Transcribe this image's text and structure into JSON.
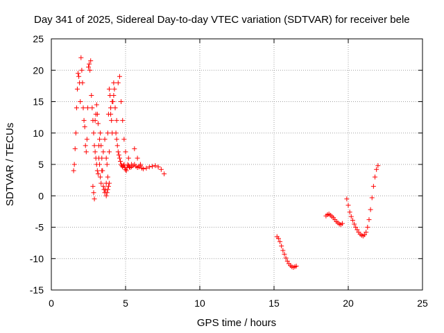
{
  "chart_data": {
    "type": "scatter",
    "title": "Day 341 of 2025, Sidereal Day-to-day VTEC variation (SDTVAR) for receiver bele",
    "xlabel": "GPS time / hours",
    "ylabel": "SDTVAR / TECUs",
    "xlim": [
      0,
      25
    ],
    "ylim": [
      -15,
      25
    ],
    "xticks": [
      0,
      5,
      10,
      15,
      20,
      25
    ],
    "yticks": [
      -15,
      -10,
      -5,
      0,
      5,
      10,
      15,
      20,
      25
    ],
    "xtick_labels": [
      "0",
      "5",
      "10",
      "15",
      "20",
      "25"
    ],
    "ytick_labels": [
      "-15",
      "-10",
      "-5",
      "0",
      "5",
      "10",
      "15",
      "20",
      "25"
    ],
    "grid": true,
    "marker": "plus",
    "color": "#ff0000",
    "series": [
      {
        "name": "SDTVAR",
        "x": [
          1.5,
          1.55,
          1.6,
          1.65,
          1.7,
          1.75,
          1.8,
          1.85,
          1.9,
          1.95,
          2.0,
          2.05,
          2.1,
          2.15,
          2.2,
          2.25,
          2.3,
          2.35,
          2.4,
          2.45,
          2.5,
          2.55,
          2.6,
          2.65,
          2.7,
          2.75,
          2.8,
          2.85,
          2.9,
          2.95,
          3.0,
          3.05,
          3.1,
          3.15,
          3.2,
          3.25,
          3.3,
          3.35,
          3.4,
          3.45,
          3.5,
          3.55,
          3.6,
          3.65,
          3.7,
          3.75,
          3.8,
          3.85,
          3.9,
          3.95,
          4.0,
          4.05,
          4.1,
          4.15,
          4.2,
          4.25,
          4.3,
          4.35,
          4.4,
          4.45,
          4.5,
          4.55,
          4.6,
          4.65,
          4.7,
          4.75,
          4.8,
          4.85,
          4.9,
          4.95,
          5.0,
          5.05,
          5.1,
          5.15,
          5.2,
          5.25,
          5.3,
          5.4,
          5.5,
          5.6,
          5.7,
          5.8,
          5.9,
          6.0,
          6.1,
          6.2,
          6.4,
          6.6,
          6.8,
          7.0,
          7.2,
          7.4,
          7.6,
          2.95,
          3.0,
          3.05,
          3.1,
          3.15,
          3.2,
          3.25,
          3.3,
          3.35,
          3.4,
          3.5,
          3.6,
          3.7,
          3.8,
          3.9,
          4.0,
          4.1,
          4.2,
          4.3,
          4.4,
          4.5,
          4.6,
          4.7,
          4.8,
          4.9,
          5.0,
          5.2,
          5.4,
          5.6,
          5.8,
          6.0,
          3.7,
          3.75,
          3.8,
          3.85,
          3.9,
          2.8,
          2.85,
          2.9,
          15.2,
          15.3,
          15.4,
          15.5,
          15.6,
          15.7,
          15.8,
          15.9,
          16.0,
          16.1,
          16.2,
          16.3,
          16.4,
          16.5,
          18.5,
          18.6,
          18.7,
          18.8,
          18.9,
          19.0,
          19.1,
          19.2,
          19.3,
          19.4,
          19.5,
          19.6,
          19.9,
          20.0,
          20.1,
          20.2,
          20.3,
          20.4,
          20.5,
          20.6,
          20.7,
          20.8,
          20.9,
          21.0,
          21.1,
          21.2,
          21.3,
          21.4,
          21.5,
          21.6,
          21.7,
          21.8,
          21.9,
          22.0
        ],
        "y": [
          4.0,
          5.0,
          7.5,
          10.0,
          14.0,
          17.0,
          19.5,
          19.0,
          18.0,
          15.0,
          22.0,
          20.0,
          18.0,
          14.0,
          12.0,
          11.0,
          8.0,
          7.0,
          9.0,
          14.0,
          20.5,
          21.0,
          20.0,
          21.5,
          16.0,
          14.0,
          12.0,
          10.0,
          8.0,
          7.0,
          6.0,
          5.0,
          4.0,
          3.5,
          6.0,
          9.0,
          10.0,
          8.0,
          6.0,
          4.0,
          1.5,
          1.0,
          0.5,
          1.0,
          2.0,
          5.0,
          10.0,
          13.0,
          17.0,
          16.0,
          14.0,
          12.0,
          10.0,
          15.0,
          18.0,
          17.0,
          14.0,
          10.0,
          9.0,
          8.0,
          7.0,
          6.5,
          6.0,
          5.5,
          5.0,
          4.8,
          4.6,
          4.8,
          5.0,
          4.5,
          4.2,
          4.0,
          4.5,
          5.0,
          4.8,
          4.6,
          4.5,
          4.6,
          4.8,
          5.0,
          4.7,
          4.5,
          4.6,
          4.8,
          4.4,
          4.3,
          4.4,
          4.6,
          4.7,
          4.8,
          4.6,
          4.2,
          3.5,
          12.0,
          13.0,
          14.5,
          13.0,
          11.5,
          8.0,
          5.0,
          3.0,
          2.0,
          4.0,
          7.0,
          9.0,
          6.0,
          3.0,
          7.0,
          13.0,
          15.0,
          16.0,
          14.0,
          12.0,
          18.0,
          19.0,
          15.0,
          12.0,
          9.0,
          7.0,
          6.0,
          5.0,
          7.5,
          6.0,
          5.0,
          0.0,
          0.5,
          1.0,
          1.5,
          2.0,
          1.5,
          0.5,
          -0.5,
          -6.5,
          -6.8,
          -7.3,
          -8.0,
          -8.7,
          -9.3,
          -9.9,
          -10.4,
          -10.8,
          -11.1,
          -11.3,
          -11.4,
          -11.3,
          -11.2,
          -3.2,
          -3.0,
          -2.9,
          -3.1,
          -3.3,
          -3.5,
          -3.8,
          -4.1,
          -4.3,
          -4.5,
          -4.6,
          -4.4,
          -0.5,
          -1.5,
          -2.6,
          -3.3,
          -3.9,
          -4.5,
          -5.0,
          -5.4,
          -5.8,
          -6.1,
          -6.3,
          -6.4,
          -6.2,
          -5.8,
          -5.0,
          -3.8,
          -2.2,
          -0.3,
          1.5,
          3.0,
          4.2,
          4.8
        ]
      }
    ]
  }
}
